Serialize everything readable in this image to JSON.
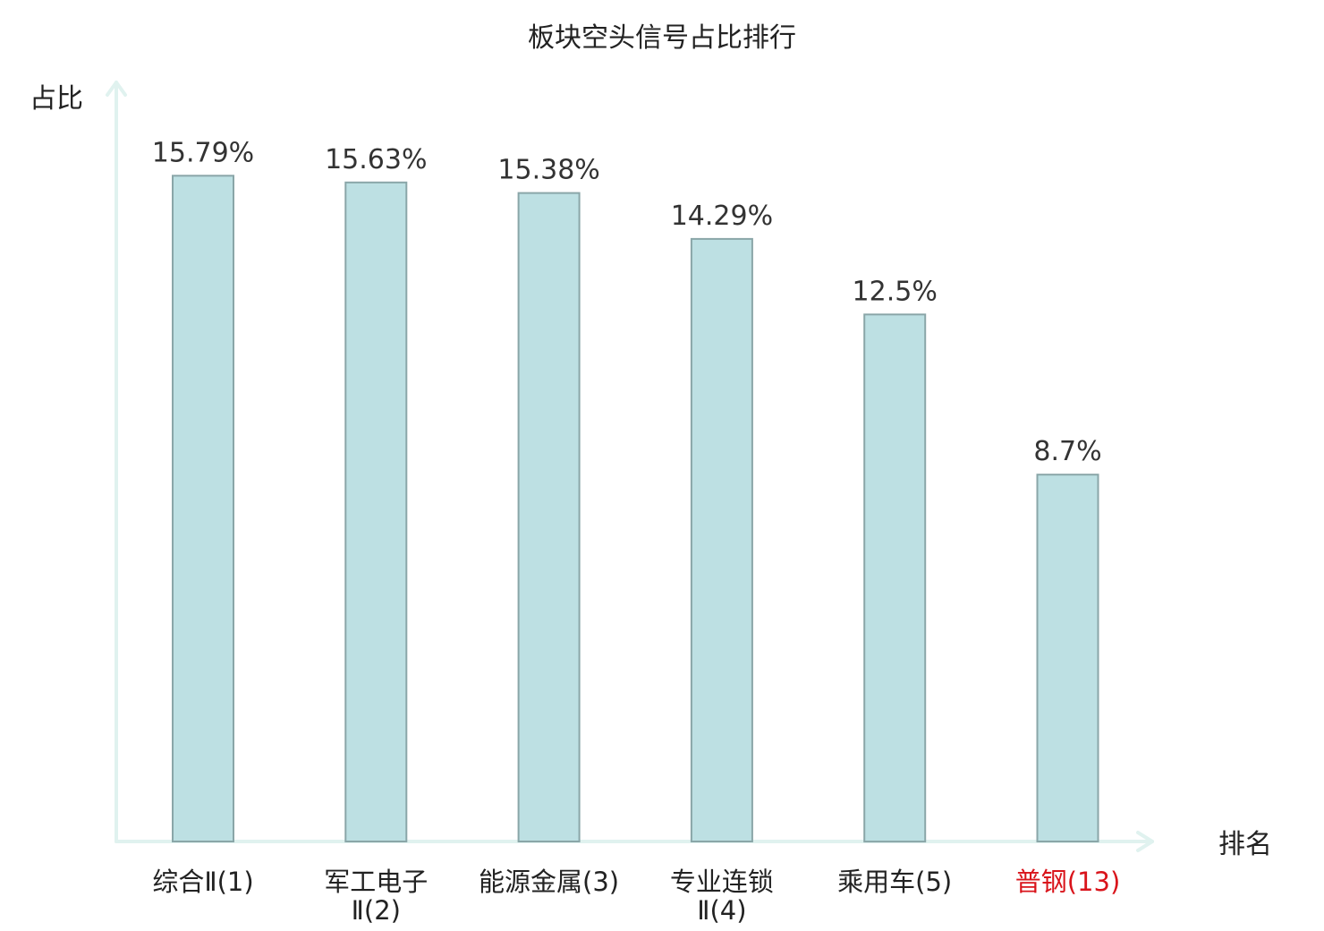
{
  "chart_data": {
    "type": "bar",
    "title": "板块空头信号占比排行",
    "ylabel": "占比",
    "xlabel": "排名",
    "categories": [
      {
        "name": "综合Ⅱ",
        "rank": "(1)",
        "lines": [
          "综合Ⅱ(1)"
        ],
        "highlight": false
      },
      {
        "name": "军工电子Ⅱ",
        "rank": "(2)",
        "lines": [
          "军工电子",
          "Ⅱ(2)"
        ],
        "highlight": false
      },
      {
        "name": "能源金属",
        "rank": "(3)",
        "lines": [
          "能源金属(3)"
        ],
        "highlight": false
      },
      {
        "name": "专业连锁Ⅱ",
        "rank": "(4)",
        "lines": [
          "专业连锁",
          "Ⅱ(4)"
        ],
        "highlight": false
      },
      {
        "name": "乘用车",
        "rank": "(5)",
        "lines": [
          "乘用车(5)"
        ],
        "highlight": false
      },
      {
        "name": "普钢",
        "rank": "(13)",
        "lines": [
          "普钢(13)"
        ],
        "highlight": true
      }
    ],
    "values": [
      15.79,
      15.63,
      15.38,
      14.29,
      12.5,
      8.7
    ],
    "value_labels": [
      "15.79%",
      "15.63%",
      "15.38%",
      "14.29%",
      "12.5%",
      "8.7%"
    ],
    "ylim": [
      0,
      17.5
    ],
    "grid": false,
    "legend": "none",
    "colors": {
      "bar_fill": "#bde0e3",
      "bar_stroke": "#8aa6a8",
      "axis": "#e0f2ef",
      "text": "#222222",
      "highlight_text": "#d9141b"
    }
  }
}
